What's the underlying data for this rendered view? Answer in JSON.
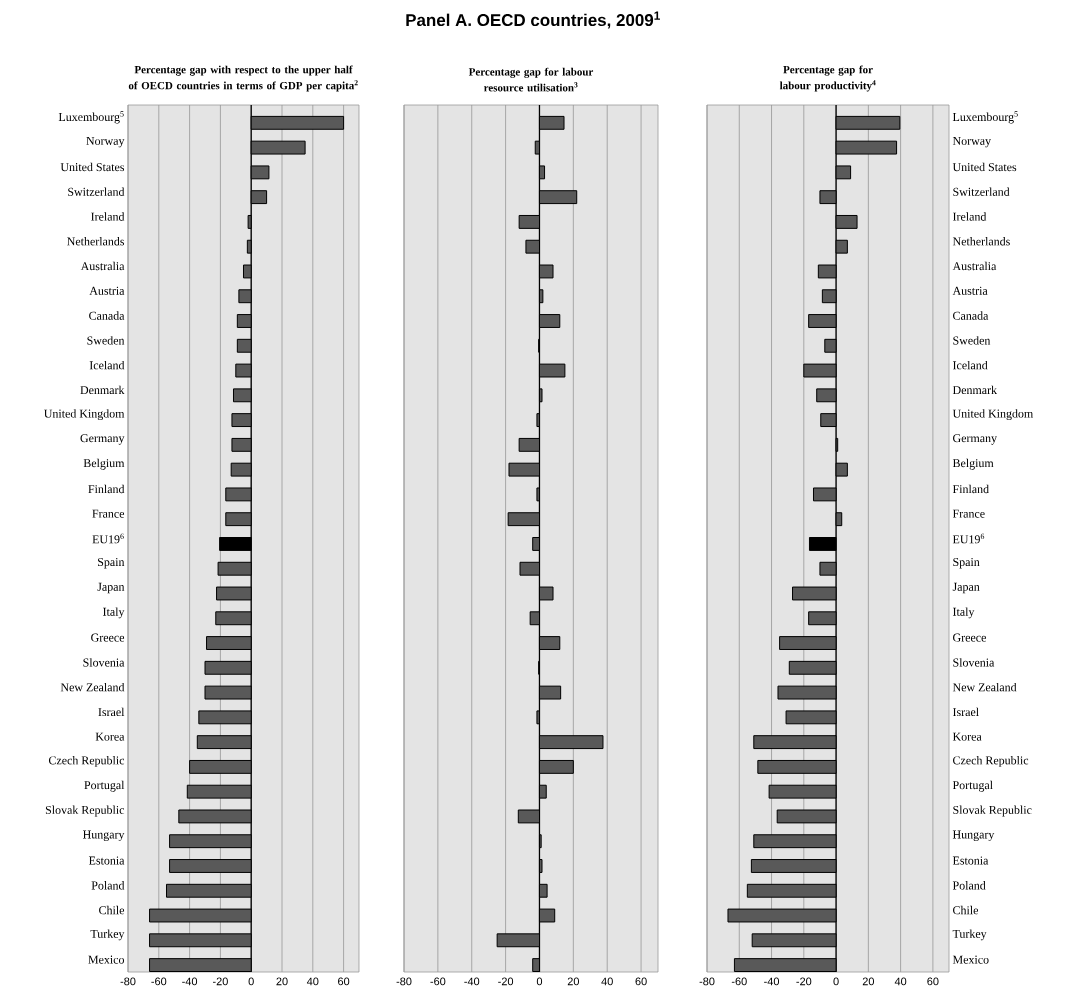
{
  "chart_data": [
    {
      "type": "bar",
      "orientation": "horizontal",
      "title": "Percentage gap with respect to the upper half of OECD countries in terms of GDP per capita$^{2}$",
      "annotations": [
        "Panel A. OECD countries, 2009$^{1}$"
      ],
      "categories": [
        "Luxembourg$^{5}$",
        "Norway",
        "United States",
        "Switzerland",
        "Ireland",
        "Netherlands",
        "Australia",
        "Austria",
        "Canada",
        "Sweden",
        "Iceland",
        "Denmark",
        "United Kingdom",
        "Germany",
        "Belgium",
        "Finland",
        "France",
        "EU19$^{6}$",
        "Spain",
        "Japan",
        "Italy",
        "Greece",
        "Slovenia",
        "New Zealand",
        "Israel",
        "Korea",
        "Czech Republic",
        "Portugal",
        "Slovak Republic",
        "Hungary",
        "Estonia",
        "Poland",
        "Chile",
        "Turkey",
        "Mexico"
      ],
      "values": [
        60,
        35,
        11.5,
        10,
        -2,
        -2.5,
        -5,
        -8,
        -9,
        -9,
        -10,
        -11.5,
        -12.5,
        -12.5,
        -13,
        -16.5,
        -16.5,
        -20.5,
        -21.5,
        -22.5,
        -23,
        -29,
        -30,
        -30,
        -34,
        -35,
        -40,
        -41.5,
        -47,
        -53,
        -53,
        -55,
        -66,
        -66,
        -66
      ],
      "colors": [
        "#595959",
        "#595959",
        "#595959",
        "#595959",
        "#595959",
        "#595959",
        "#595959",
        "#595959",
        "#595959",
        "#595959",
        "#595959",
        "#595959",
        "#595959",
        "#595959",
        "#595959",
        "#595959",
        "#595959",
        "#000000",
        "#595959",
        "#595959",
        "#595959",
        "#595959",
        "#595959",
        "#595959",
        "#595959",
        "#595959",
        "#595959",
        "#595959",
        "#595959",
        "#595959",
        "#595959",
        "#595959",
        "#595959",
        "#595959",
        "#595959"
      ],
      "xlim": [
        -80,
        70
      ],
      "xticks": [
        -80,
        -60,
        -40,
        -20,
        0,
        20,
        40,
        60
      ],
      "grid": "x"
    },
    {
      "type": "bar",
      "orientation": "horizontal",
      "title": "Percentage gap for labour resource utilisation$^{3}$",
      "categories": [
        null,
        null,
        null,
        null,
        null,
        null,
        null,
        null,
        null,
        null,
        null,
        null,
        null,
        null,
        null,
        null,
        null,
        null,
        null,
        null,
        null,
        null,
        null,
        null,
        null,
        null,
        null,
        null,
        null,
        null,
        null,
        null,
        null,
        null,
        null
      ],
      "values": [
        14.5,
        -2.5,
        3,
        22,
        -12,
        -8,
        8,
        2,
        12,
        -0.5,
        15,
        1.5,
        -1.5,
        -12,
        -18,
        -1.5,
        -18.5,
        -4,
        -11.5,
        8,
        -5.5,
        12,
        -0.5,
        12.5,
        -1.5,
        37.5,
        20,
        4,
        -12.5,
        1,
        1.5,
        4.5,
        9,
        -25,
        -4
      ],
      "colors": [
        "#595959",
        "#595959",
        "#595959",
        "#595959",
        "#595959",
        "#595959",
        "#595959",
        "#595959",
        "#595959",
        "#595959",
        "#595959",
        "#595959",
        "#595959",
        "#595959",
        "#595959",
        "#595959",
        "#595959",
        "#595959",
        "#595959",
        "#595959",
        "#595959",
        "#595959",
        "#595959",
        "#595959",
        "#595959",
        "#595959",
        "#595959",
        "#595959",
        "#595959",
        "#595959",
        "#595959",
        "#595959",
        "#595959",
        "#595959",
        "#595959"
      ],
      "xlim": [
        -80,
        70
      ],
      "xticks": [
        -80,
        -60,
        -40,
        -20,
        0,
        20,
        40,
        60
      ],
      "grid": "x",
      "tick_labels": "x"
    },
    {
      "type": "bar",
      "orientation": "horizontal",
      "title": "Percentage gap for labour productivity$^{4}$",
      "categories": [
        "Luxembourg$^{5}$",
        "Norway",
        "United States",
        "Switzerland",
        "Ireland",
        "Netherlands",
        "Australia",
        "Austria",
        "Canada",
        "Sweden",
        "Iceland",
        "Denmark",
        "United Kingdom",
        "Germany",
        "Belgium",
        "Finland",
        "France",
        "EU19$^{6}$",
        "Spain",
        "Japan",
        "Italy",
        "Greece",
        "Slovenia",
        "New Zealand",
        "Israel",
        "Korea",
        "Czech Republic",
        "Portugal",
        "Slovak Republic",
        "Hungary",
        "Estonia",
        "Poland",
        "Chile",
        "Turkey",
        "Mexico"
      ],
      "values": [
        39.5,
        37.5,
        9,
        -10,
        13,
        7,
        -11,
        -8.5,
        -17,
        -7,
        -20,
        -12,
        -9.5,
        1,
        7,
        -14,
        3.5,
        -16.5,
        -10,
        -27,
        -17,
        -35,
        -29,
        -36,
        -31,
        -51,
        -48.5,
        -41.5,
        -36.5,
        -51,
        -52.5,
        -55,
        -67,
        -52,
        -63
      ],
      "colors": [
        "#595959",
        "#595959",
        "#595959",
        "#595959",
        "#595959",
        "#595959",
        "#595959",
        "#595959",
        "#595959",
        "#595959",
        "#595959",
        "#595959",
        "#595959",
        "#595959",
        "#595959",
        "#595959",
        "#595959",
        "#000000",
        "#595959",
        "#595959",
        "#595959",
        "#595959",
        "#595959",
        "#595959",
        "#595959",
        "#595959",
        "#595959",
        "#595959",
        "#595959",
        "#595959",
        "#595959",
        "#595959",
        "#595959",
        "#595959",
        "#595959"
      ],
      "xlim": [
        -80,
        70
      ],
      "xticks": [
        -80,
        -60,
        -40,
        -20,
        0,
        20,
        40,
        60
      ],
      "grid": "x"
    }
  ]
}
